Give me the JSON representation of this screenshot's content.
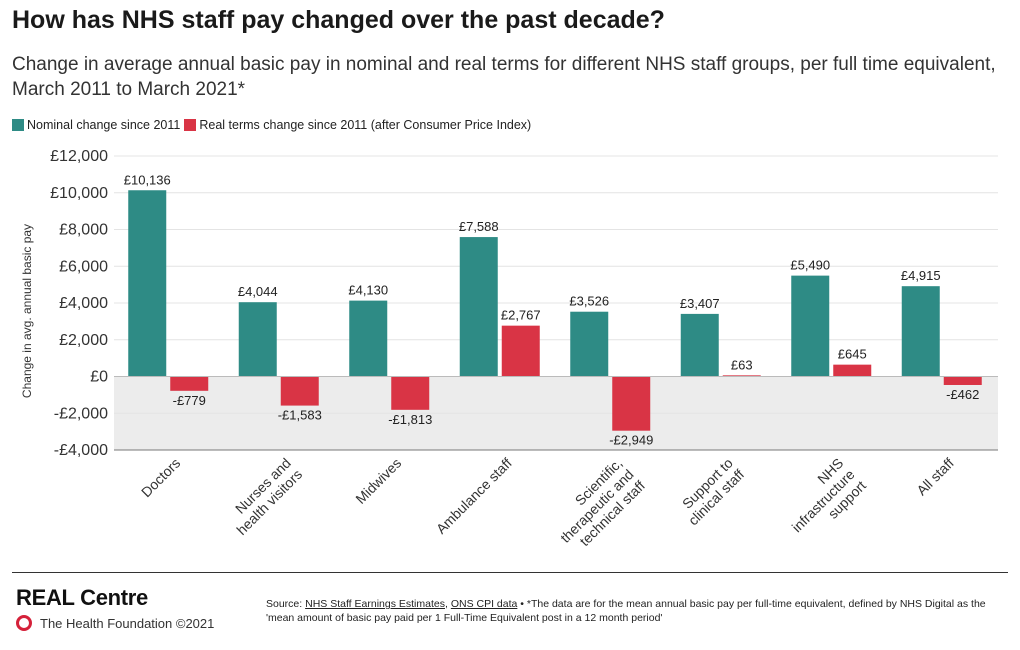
{
  "header": {
    "title": "How has NHS staff pay changed over the past decade?",
    "subtitle": "Change in average annual basic pay in nominal and real terms for different NHS staff groups, per full time equivalent, March 2011 to March 2021*"
  },
  "colors": {
    "nominal": "#2e8b85",
    "real": "#d93445",
    "negative_band": "#ececec",
    "grid": "#e4e4e4"
  },
  "chart_data": {
    "type": "bar",
    "ylabel": "Change in avg. annual basic pay",
    "ylim": [
      -4000,
      12000
    ],
    "yticks": [
      {
        "value": 12000,
        "label": "£12,000"
      },
      {
        "value": 10000,
        "label": "£10,000"
      },
      {
        "value": 8000,
        "label": "£8,000"
      },
      {
        "value": 6000,
        "label": "£6,000"
      },
      {
        "value": 4000,
        "label": "£4,000"
      },
      {
        "value": 2000,
        "label": "£2,000"
      },
      {
        "value": 0,
        "label": "£0"
      },
      {
        "value": -2000,
        "label": "-£2,000"
      },
      {
        "value": -4000,
        "label": "-£4,000"
      }
    ],
    "grid": true,
    "legend_position": "top-left",
    "categories": [
      [
        "Doctors"
      ],
      [
        "Nurses and",
        "health visitors"
      ],
      [
        "Midwives"
      ],
      [
        "Ambulance staff"
      ],
      [
        "Scientific,",
        "therapeutic and",
        "technical staff"
      ],
      [
        "Support to",
        "clinical staff"
      ],
      [
        "NHS",
        "infrastructure",
        "support"
      ],
      [
        "All staff"
      ]
    ],
    "series": [
      {
        "name": "Nominal change since 2011",
        "values": [
          10136,
          4044,
          4130,
          7588,
          3526,
          3407,
          5490,
          4915
        ],
        "labels": [
          "£10,136",
          "£4,044",
          "£4,130",
          "£7,588",
          "£3,526",
          "£3,407",
          "£5,490",
          "£4,915"
        ]
      },
      {
        "name": "Real terms change since 2011 (after Consumer Price Index)",
        "values": [
          -779,
          -1583,
          -1813,
          2767,
          -2949,
          63,
          645,
          -462
        ],
        "labels": [
          "-£779",
          "-£1,583",
          "-£1,813",
          "£2,767",
          "-£2,949",
          "£63",
          "£645",
          "-£462"
        ]
      }
    ]
  },
  "footer": {
    "brand": "REAL Centre",
    "org": "The Health Foundation ©2021",
    "source_prefix": "Source: ",
    "source_link1": "NHS Staff Earnings Estimates",
    "source_sep": ", ",
    "source_link2": "ONS CPI data",
    "source_note": " • *The data are for the mean annual basic pay per full-time equivalent, defined by NHS Digital as the 'mean amount of basic pay paid per 1 Full-Time Equivalent post in a 12 month period'"
  }
}
